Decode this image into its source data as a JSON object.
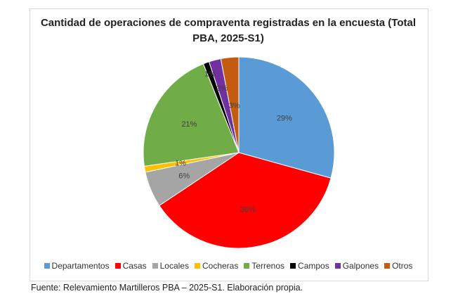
{
  "chart_data": {
    "type": "pie",
    "title": "Cantidad de operaciones de compraventa registradas en la encuesta (Total PBA, 2025-S1)",
    "categories": [
      "Departamentos",
      "Casas",
      "Locales",
      "Cocheras",
      "Terrenos",
      "Campos",
      "Galpones",
      "Otros"
    ],
    "values": [
      29,
      36,
      6,
      1,
      21,
      1,
      2,
      3
    ],
    "labels": [
      "29%",
      "36%",
      "6%",
      "1%",
      "21%",
      "1%",
      "2%",
      "3%"
    ],
    "colors": [
      "#5b9bd5",
      "#ff0000",
      "#a5a5a5",
      "#ffc000",
      "#70ad47",
      "#000000",
      "#7030a0",
      "#c55a11"
    ],
    "legend": "bottom"
  },
  "source": "Fuente: Relevamiento Martilleros PBA – 2025-S1. Elaboración propia."
}
